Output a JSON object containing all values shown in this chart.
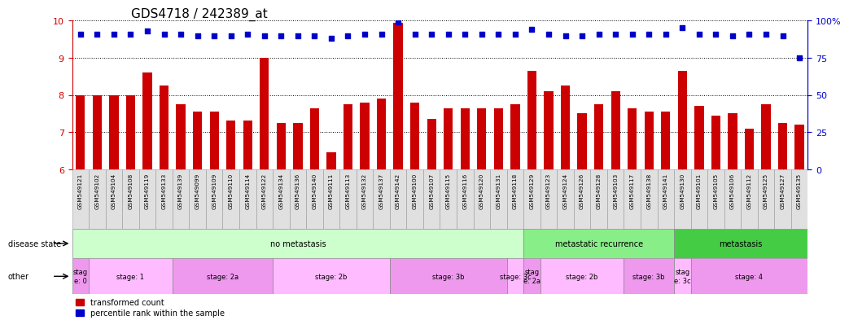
{
  "title": "GDS4718 / 242389_at",
  "samples": [
    "GSM549121",
    "GSM549102",
    "GSM549104",
    "GSM549108",
    "GSM549119",
    "GSM549133",
    "GSM549139",
    "GSM549099",
    "GSM549109",
    "GSM549110",
    "GSM549114",
    "GSM549122",
    "GSM549134",
    "GSM549136",
    "GSM549140",
    "GSM549111",
    "GSM549113",
    "GSM549132",
    "GSM549137",
    "GSM549142",
    "GSM549100",
    "GSM549107",
    "GSM549115",
    "GSM549116",
    "GSM549120",
    "GSM549131",
    "GSM549118",
    "GSM549129",
    "GSM549123",
    "GSM549124",
    "GSM549126",
    "GSM549128",
    "GSM549103",
    "GSM549117",
    "GSM549138",
    "GSM549141",
    "GSM549130",
    "GSM549101",
    "GSM549105",
    "GSM549106",
    "GSM549112",
    "GSM549125",
    "GSM549127",
    "GSM549135"
  ],
  "bar_values": [
    8.0,
    8.0,
    8.0,
    8.0,
    8.6,
    8.25,
    7.75,
    7.55,
    7.55,
    7.3,
    7.3,
    9.0,
    7.25,
    7.25,
    7.65,
    6.45,
    7.75,
    7.8,
    7.9,
    9.95,
    7.8,
    7.35,
    7.65,
    7.65,
    7.65,
    7.65,
    7.75,
    8.65,
    8.1,
    8.25,
    7.5,
    7.75,
    8.1,
    7.65,
    7.55,
    7.55,
    8.65,
    7.7,
    7.45,
    7.5,
    7.1,
    7.75,
    7.25,
    7.2
  ],
  "percentile_values": [
    91,
    91,
    91,
    91,
    93,
    91,
    91,
    90,
    90,
    90,
    91,
    90,
    90,
    90,
    90,
    88,
    90,
    91,
    91,
    99,
    91,
    91,
    91,
    91,
    91,
    91,
    91,
    94,
    91,
    90,
    90,
    91,
    91,
    91,
    91,
    91,
    95,
    91,
    91,
    90,
    91,
    91,
    90,
    75
  ],
  "ylim_left": [
    6.0,
    10.0
  ],
  "ylim_right": [
    0,
    100
  ],
  "yticks_left": [
    6,
    7,
    8,
    9,
    10
  ],
  "yticks_right": [
    0,
    25,
    50,
    75,
    100
  ],
  "bar_color": "#cc0000",
  "dot_color": "#0000cc",
  "background_color": "#ffffff",
  "tick_label_color_left": "#cc0000",
  "tick_label_color_right": "#0000cc",
  "title_fontsize": 11,
  "disease_regions": [
    {
      "label": "no metastasis",
      "start": 0,
      "end": 27,
      "color": "#ccffcc"
    },
    {
      "label": "metastatic recurrence",
      "start": 27,
      "end": 36,
      "color": "#88ee88"
    },
    {
      "label": "metastasis",
      "start": 36,
      "end": 44,
      "color": "#44cc44"
    }
  ],
  "other_regions": [
    {
      "label": "stag\ne: 0",
      "start": 0,
      "end": 1,
      "color": "#ee99ee"
    },
    {
      "label": "stage: 1",
      "start": 1,
      "end": 6,
      "color": "#ffbbff"
    },
    {
      "label": "stage: 2a",
      "start": 6,
      "end": 12,
      "color": "#ee99ee"
    },
    {
      "label": "stage: 2b",
      "start": 12,
      "end": 19,
      "color": "#ffbbff"
    },
    {
      "label": "stage: 3b",
      "start": 19,
      "end": 26,
      "color": "#ee99ee"
    },
    {
      "label": "stage: 3c",
      "start": 26,
      "end": 27,
      "color": "#ffbbff"
    },
    {
      "label": "stag\ne: 2a",
      "start": 27,
      "end": 28,
      "color": "#ee99ee"
    },
    {
      "label": "stage: 2b",
      "start": 28,
      "end": 33,
      "color": "#ffbbff"
    },
    {
      "label": "stage: 3b",
      "start": 33,
      "end": 36,
      "color": "#ee99ee"
    },
    {
      "label": "stag\ne: 3c",
      "start": 36,
      "end": 37,
      "color": "#ffbbff"
    },
    {
      "label": "stage: 4",
      "start": 37,
      "end": 44,
      "color": "#ee99ee"
    }
  ]
}
